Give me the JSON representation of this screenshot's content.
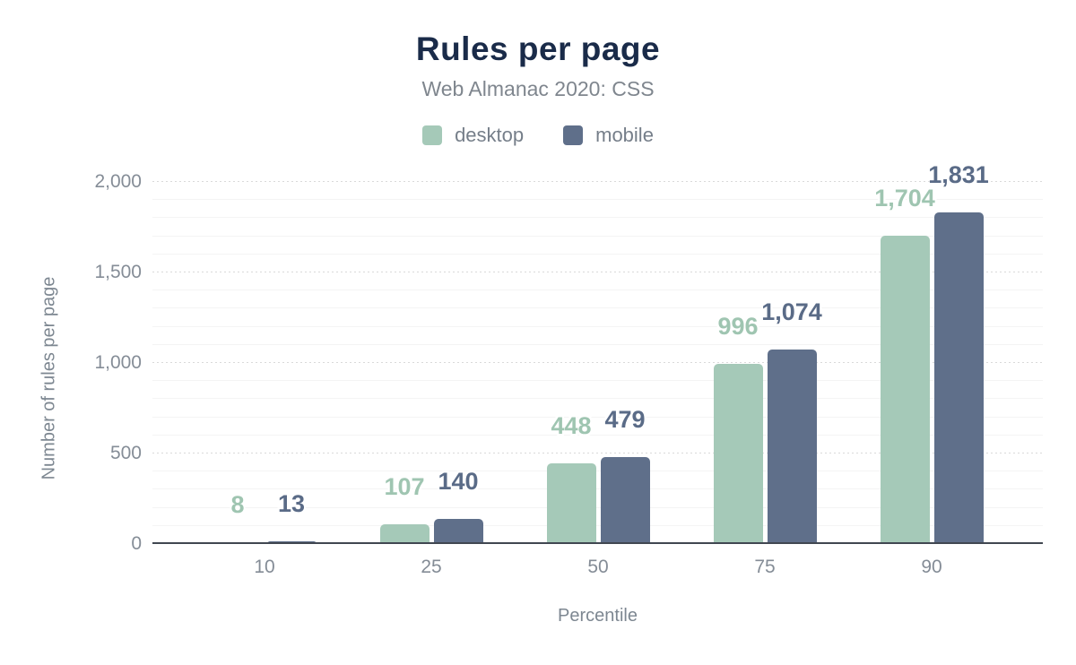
{
  "chart": {
    "title": "Rules per page",
    "subtitle": "Web Almanac 2020: CSS",
    "x_title": "Percentile",
    "y_title": "Number of rules per page"
  },
  "colors": {
    "title": "#1a2b49",
    "muted_text": "#7d8791",
    "tick_text": "#858d97",
    "axis_line": "#414751",
    "grid_minor": "#f4f4f4",
    "grid_major": "#d9d9d9",
    "desktop": "#a5c9b8",
    "desktop_label": "#9fc5b1",
    "mobile": "#5f6f8a",
    "mobile_label": "#5a6b87"
  },
  "chart_data": {
    "type": "bar",
    "title": "Rules per page",
    "subtitle": "Web Almanac 2020: CSS",
    "xlabel": "Percentile",
    "ylabel": "Number of rules per page",
    "categories": [
      "10",
      "25",
      "50",
      "75",
      "90"
    ],
    "series": [
      {
        "name": "desktop",
        "color": "#a5c9b8",
        "label_color": "#9fc5b1",
        "values": [
          8,
          107,
          448,
          996,
          1704
        ],
        "labels": [
          "8",
          "107",
          "448",
          "996",
          "1,704"
        ]
      },
      {
        "name": "mobile",
        "color": "#5f6f8a",
        "label_color": "#5a6b87",
        "values": [
          13,
          140,
          479,
          1074,
          1831
        ],
        "labels": [
          "13",
          "140",
          "479",
          "1,074",
          "1,831"
        ]
      }
    ],
    "ylim": [
      0,
      2000
    ],
    "y_ticks": [
      {
        "value": 0,
        "label": "0"
      },
      {
        "value": 500,
        "label": "500"
      },
      {
        "value": 1000,
        "label": "1,000"
      },
      {
        "value": 1500,
        "label": "1,500"
      },
      {
        "value": 2000,
        "label": "2,000"
      }
    ],
    "grid": {
      "minor_step": 100,
      "major_step": 500
    },
    "legend_position": "top",
    "legend": [
      "desktop",
      "mobile"
    ]
  }
}
